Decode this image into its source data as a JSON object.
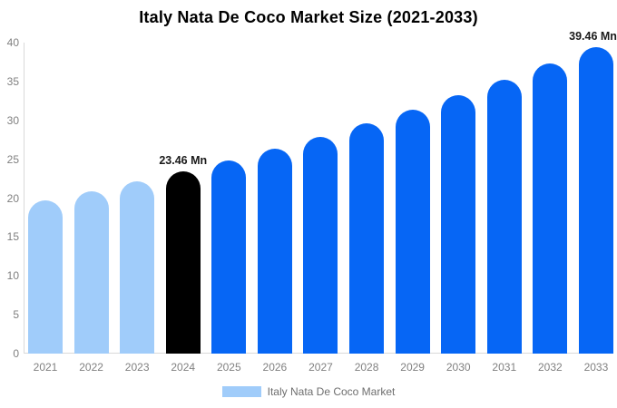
{
  "title": "Italy Nata De Coco Market Size (2021-2033)",
  "legend": {
    "label": "Italy Nata De Coco Market",
    "swatch_color": "#a0ccfa"
  },
  "colors": {
    "historical_bar": "#a0ccfa",
    "base_year_bar": "#000000",
    "forecast_bar": "#0666f5",
    "axis_line": "#d9d9d9",
    "tick_text": "#808080",
    "annotation_text": "#1a1a1a"
  },
  "chart_data": {
    "type": "bar",
    "title": "Italy Nata De Coco Market Size (2021-2033)",
    "xlabel": "",
    "ylabel": "",
    "categories": [
      "2021",
      "2022",
      "2023",
      "2024",
      "2025",
      "2026",
      "2027",
      "2028",
      "2029",
      "2030",
      "2031",
      "2032",
      "2033"
    ],
    "values": [
      19.72,
      20.9,
      22.14,
      23.46,
      24.86,
      26.34,
      27.91,
      29.57,
      31.33,
      33.2,
      35.18,
      37.27,
      39.46
    ],
    "bar_colors": [
      "#a0ccfa",
      "#a0ccfa",
      "#a0ccfa",
      "#000000",
      "#0666f5",
      "#0666f5",
      "#0666f5",
      "#0666f5",
      "#0666f5",
      "#0666f5",
      "#0666f5",
      "#0666f5",
      "#0666f5"
    ],
    "annotations": [
      {
        "category": "2024",
        "text": "23.46 Mn"
      },
      {
        "category": "2033",
        "text": "39.46 Mn"
      }
    ],
    "unit": "Mn",
    "ylim": [
      0,
      40
    ],
    "yticks": [
      0,
      5,
      10,
      15,
      20,
      25,
      30,
      35,
      40
    ],
    "grid": false,
    "legend_entries": [
      "Italy Nata De Coco Market"
    ],
    "legend_position": "bottom"
  }
}
